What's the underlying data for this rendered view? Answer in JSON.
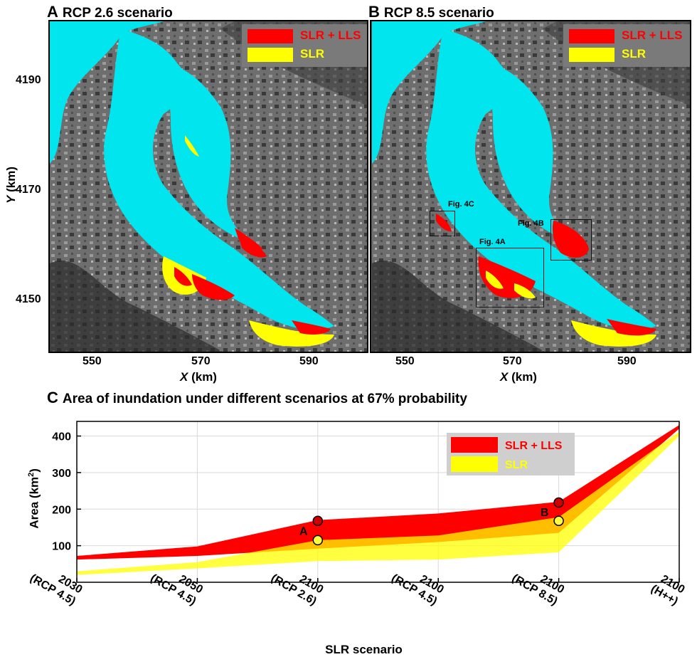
{
  "panel_a": {
    "letter": "A",
    "title": "RCP 2.6 scenario",
    "legend": [
      {
        "label": "SLR + LLS",
        "color": "#ff0000"
      },
      {
        "label": "SLR",
        "color": "#ffff00"
      }
    ]
  },
  "panel_b": {
    "letter": "B",
    "title": "RCP 8.5 scenario",
    "legend": [
      {
        "label": "SLR + LLS",
        "color": "#ff0000"
      },
      {
        "label": "SLR",
        "color": "#ffff00"
      }
    ],
    "boxes": [
      {
        "label": "Fig. 4C"
      },
      {
        "label": "Fig. 4A"
      },
      {
        "label": "Fig. 4B"
      }
    ]
  },
  "map_axes": {
    "x_ticks": [
      "550",
      "570",
      "590"
    ],
    "y_ticks": [
      "4190",
      "4170",
      "4150"
    ],
    "x_label_var": "X",
    "x_label_unit": "(km)",
    "y_label_var": "Y",
    "y_label_unit": "(km)"
  },
  "panel_c": {
    "letter": "C",
    "title": "Area of inundation under different scenarios at 67% probability"
  },
  "colors": {
    "water": "#00e5ee",
    "slr_lls": "#ff0000",
    "slr": "#ffff00",
    "overlap": "#ffb000",
    "legend_bg": "#7a7a7a"
  },
  "chart_data": {
    "type": "area",
    "title": "Area of inundation under different scenarios at 67% probability",
    "xlabel": "SLR scenario",
    "ylabel_base": "Area (km",
    "ylabel_sup": "2",
    "ylabel_end": ")",
    "categories": [
      [
        "2030",
        "(RCP 4.5)"
      ],
      [
        "2050",
        "(RCP 4.5)"
      ],
      [
        "2100",
        "(RCP 2.6)"
      ],
      [
        "2100",
        "(RCP 4.5)"
      ],
      [
        "2100",
        "(RCP 8.5)"
      ],
      [
        "2100",
        "(H++)"
      ]
    ],
    "ylim": [
      0,
      440
    ],
    "yticks": [
      100,
      200,
      300,
      400
    ],
    "grid": true,
    "legend_position": "top-right",
    "series": [
      {
        "name": "SLR + LLS",
        "color": "#ff0000",
        "lower": [
          62,
          72,
          92,
          110,
          135,
          420
        ],
        "upper": [
          72,
          98,
          170,
          188,
          220,
          430
        ]
      },
      {
        "name": "SLR",
        "color": "#ffff00",
        "lower": [
          20,
          38,
          58,
          62,
          82,
          400
        ],
        "upper": [
          30,
          55,
          115,
          128,
          178,
          412
        ]
      }
    ],
    "points": [
      {
        "label": "A",
        "category_index": 2,
        "slr_lls": 168,
        "slr": 115
      },
      {
        "label": "B",
        "category_index": 4,
        "slr_lls": 218,
        "slr": 168
      }
    ]
  }
}
